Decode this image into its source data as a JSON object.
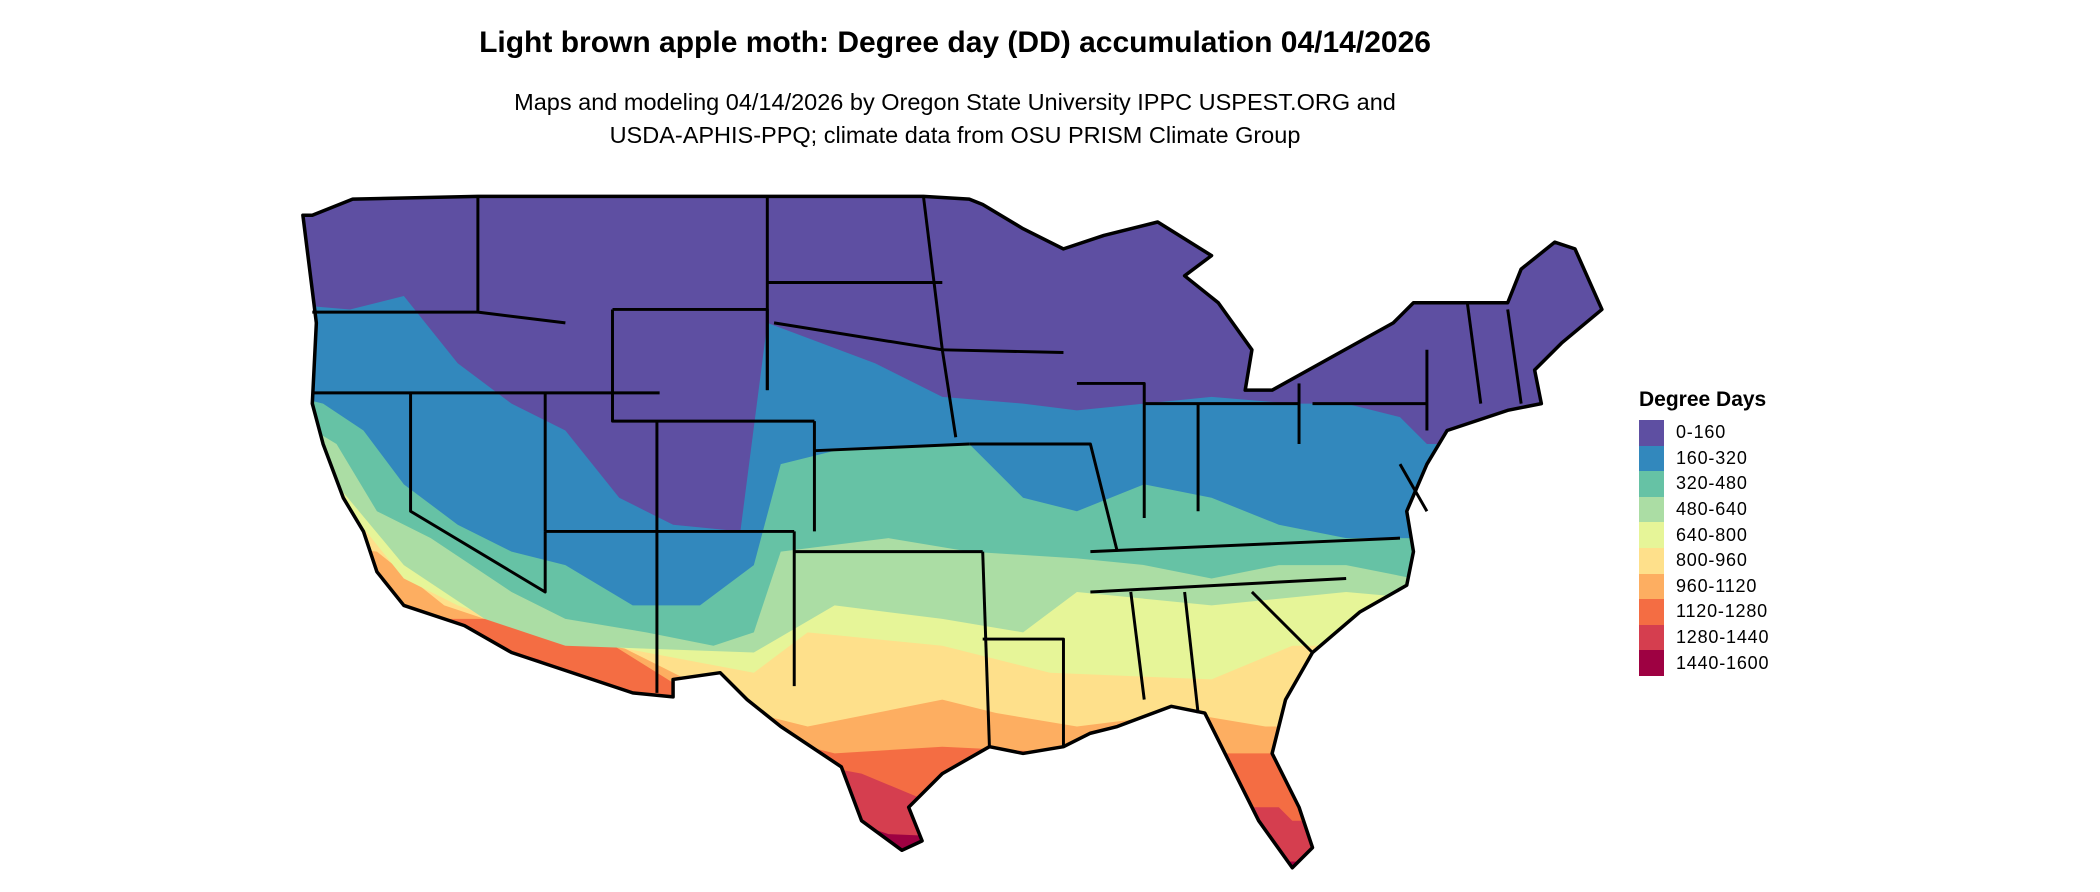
{
  "header": {
    "title": "Light brown apple moth: Degree day (DD) accumulation 04/14/2026",
    "subtitle_line1": "Maps and modeling 04/14/2026 by Oregon State University IPPC USPEST.ORG and",
    "subtitle_line2": "USDA-APHIS-PPQ; climate data from OSU PRISM Climate Group"
  },
  "map": {
    "region": "Contiguous United States",
    "legend": {
      "title": "Degree Days",
      "items": [
        {
          "label": "0-160",
          "color": "#5E4FA2"
        },
        {
          "label": "160-320",
          "color": "#3288BD"
        },
        {
          "label": "320-480",
          "color": "#66C2A5"
        },
        {
          "label": "480-640",
          "color": "#ABDDA4"
        },
        {
          "label": "640-800",
          "color": "#E6F598"
        },
        {
          "label": "800-960",
          "color": "#FEE08B"
        },
        {
          "label": "960-1120",
          "color": "#FDAE61"
        },
        {
          "label": "1120-1280",
          "color": "#F46D43"
        },
        {
          "label": "1280-1440",
          "color": "#D53E4F"
        },
        {
          "label": "1440-1600",
          "color": "#9E0142"
        }
      ]
    }
  }
}
